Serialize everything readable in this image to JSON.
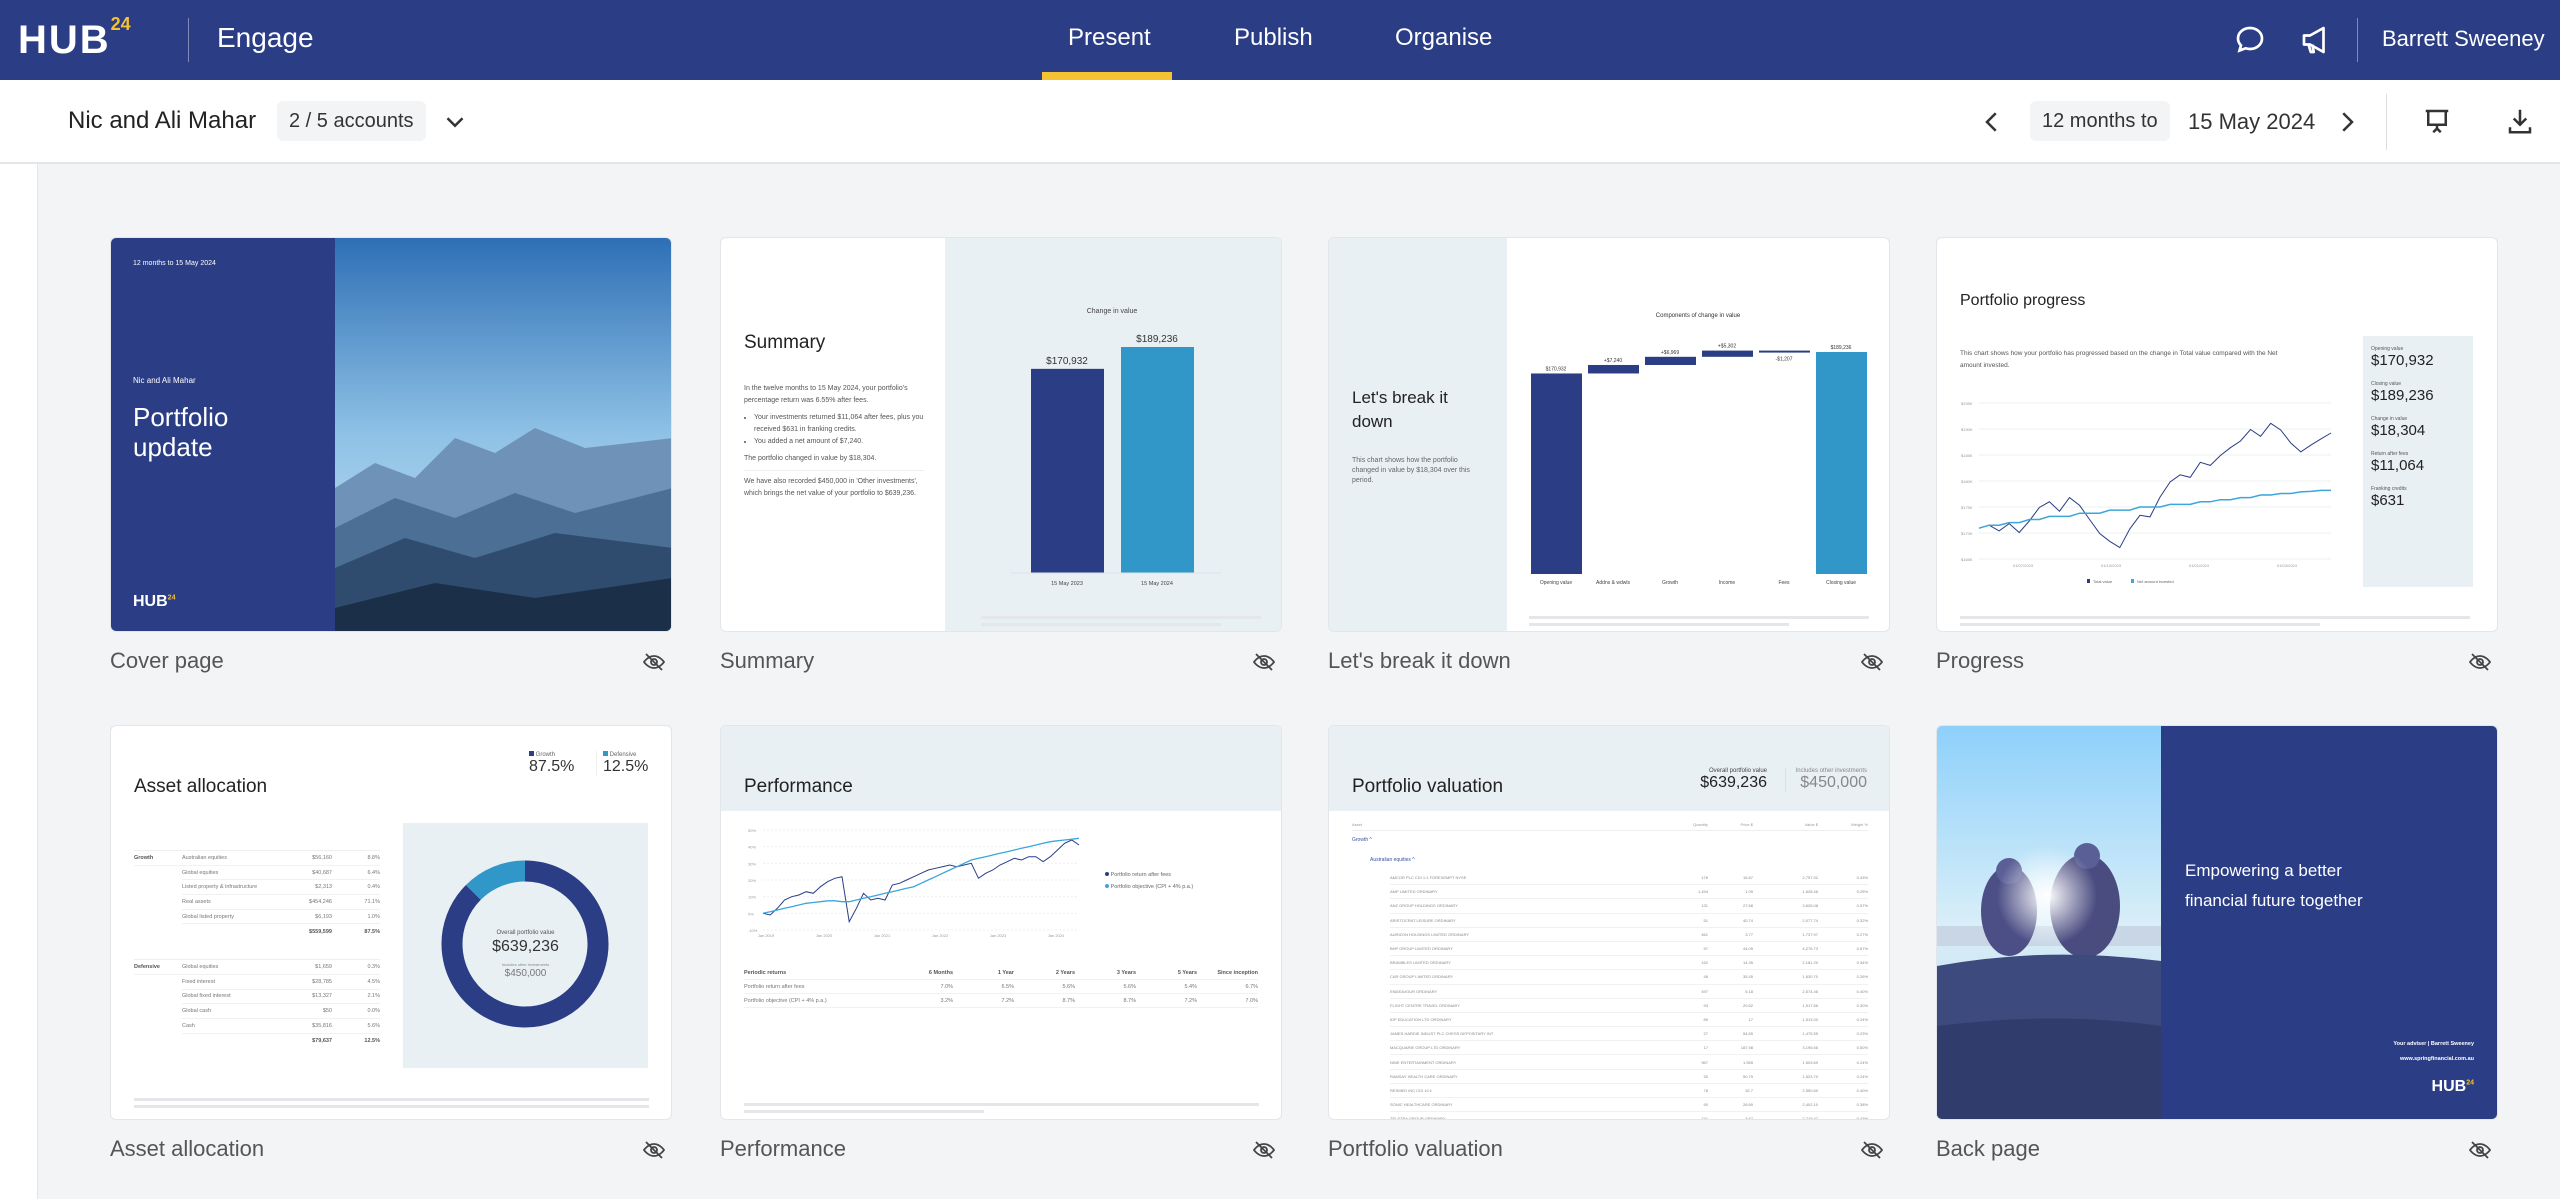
{
  "header": {
    "logo": "HUB",
    "logo_sup": "24",
    "app_name": "Engage",
    "nav": [
      {
        "label": "Present",
        "active": true
      },
      {
        "label": "Publish"
      },
      {
        "label": "Organise"
      }
    ],
    "user": "Barrett Sweeney",
    "icons": [
      "chat-icon",
      "megaphone-icon"
    ]
  },
  "subheader": {
    "client": "Nic and Ali Mahar",
    "accounts": "2 / 5 accounts",
    "period": "12 months to",
    "date": "15 May 2024"
  },
  "colors": {
    "navy": "#2a3d85",
    "accent": "#f5c231",
    "light_blue": "#3196c8",
    "pale": "#e8f0f4"
  },
  "cards": [
    {
      "label": "Cover page"
    },
    {
      "label": "Summary"
    },
    {
      "label": "Let's break it down"
    },
    {
      "label": "Progress"
    },
    {
      "label": "Asset allocation"
    },
    {
      "label": "Performance"
    },
    {
      "label": "Portfolio valuation"
    },
    {
      "label": "Back page"
    }
  ],
  "cover": {
    "period": "12 months to 15 May 2024",
    "client": "Nic and Ali Mahar",
    "title1": "Portfolio",
    "title2": "update",
    "logo": "HUB24"
  },
  "summary": {
    "title": "Summary",
    "p1": "In the twelve months to 15 May 2024, your portfolio's percentage return was 6.55% after fees.",
    "b1": "Your investments returned $11,064 after fees, plus you received $631 in franking credits.",
    "b2": "You added a net amount of $7,240.",
    "p2": "The portfolio changed in value by $18,304.",
    "p3": "We have also recorded $450,000 in 'Other investments', which brings the net value of your portfolio to $639,236."
  },
  "breakdown": {
    "title": "Let's break it down",
    "desc": "This chart shows how the portfolio changed in value by $18,304 over this period."
  },
  "progress": {
    "title": "Portfolio progress",
    "desc": "This chart shows how your portfolio has progressed based on the change in Total value compared with the Net amount invested.",
    "stats": [
      {
        "label": "Opening value",
        "value": "$170,932"
      },
      {
        "label": "Closing value",
        "value": "$189,236"
      },
      {
        "label": "Change in value",
        "value": "$18,304"
      },
      {
        "label": "Return after fees",
        "value": "$11,064"
      },
      {
        "label": "Franking credits",
        "value": "$631"
      }
    ]
  },
  "allocation": {
    "title": "Asset allocation",
    "legend": [
      {
        "label": "Growth",
        "value": "87.5%"
      },
      {
        "label": "Defensive",
        "value": "12.5%"
      }
    ],
    "groups": [
      {
        "name": "Growth",
        "rows": [
          [
            "Australian equities",
            "$56,160",
            "8.8%"
          ],
          [
            "Global equities",
            "$40,687",
            "6.4%"
          ],
          [
            "Listed property & infrastructure",
            "$2,313",
            "0.4%"
          ],
          [
            "Real assets",
            "$454,246",
            "71.1%"
          ],
          [
            "Global listed property",
            "$6,193",
            "1.0%"
          ]
        ],
        "total": [
          "$559,599",
          "87.5%"
        ]
      },
      {
        "name": "Defensive",
        "rows": [
          [
            "Global equities",
            "$1,659",
            "0.3%"
          ],
          [
            "Fixed interest",
            "$28,785",
            "4.5%"
          ],
          [
            "Global fixed interest",
            "$13,327",
            "2.1%"
          ],
          [
            "Global cash",
            "$50",
            "0.0%"
          ],
          [
            "Cash",
            "$35,816",
            "5.6%"
          ]
        ],
        "total": [
          "$79,637",
          "12.5%"
        ]
      }
    ],
    "donut_label": "Overall portfolio value",
    "donut_value": "$639,236",
    "other_label": "Includes other investments",
    "other_value": "$450,000"
  },
  "performance": {
    "title": "Performance",
    "legend": [
      "Portfolio return after fees",
      "Portfolio objective (CPI + 4% p.a.)"
    ],
    "columns": [
      "Periodic returns",
      "6 Months",
      "1 Year",
      "2 Years",
      "3 Years",
      "5 Years",
      "Since inception"
    ],
    "rows": [
      [
        "Portfolio return after fees",
        "7.0%",
        "6.5%",
        "5.6%",
        "5.6%",
        "5.4%",
        "6.7%"
      ],
      [
        "Portfolio objective (CPI + 4% p.a.)",
        "3.2%",
        "7.2%",
        "8.7%",
        "8.7%",
        "7.2%",
        "7.0%"
      ]
    ]
  },
  "valuation": {
    "title": "Portfolio valuation",
    "overall_label": "Overall portfolio value",
    "overall_value": "$639,236",
    "other_label": "Includes other investments",
    "other_value": "$450,000",
    "columns": [
      "Asset",
      "Quantity",
      "Price $",
      "Value $",
      "Weight %"
    ],
    "group": "Growth",
    "subgroup": "Australian equities",
    "rows": [
      [
        "AMCOR PLC CDI 1:1 FOREXEMPT NYSE",
        "176",
        "15.67",
        "2,757.92",
        "0.43%"
      ],
      [
        "AMP LIMITED ORDINARY",
        "1,494",
        "1.09",
        "1,628.46",
        "0.25%"
      ],
      [
        "ANZ GROUP HOLDINGS ORDINARY",
        "131",
        "27.68",
        "3,626.08",
        "0.57%"
      ],
      [
        "ARISTOCRAT LEISURE ORDINARY",
        "51",
        "40.74",
        "2,077.74",
        "0.32%"
      ],
      [
        "AURIZON HOLDINGS LIMITED ORDINARY",
        "461",
        "3.77",
        "1,737.97",
        "0.27%"
      ],
      [
        "BHP GROUP LIMITED ORDINARY",
        "97",
        "44.09",
        "4,276.73",
        "0.67%"
      ],
      [
        "BRAMBLES LIMITED ORDINARY",
        "152",
        "14.35",
        "2,181.20",
        "0.34%"
      ],
      [
        "CAR GROUP LIMITED ORDINARY",
        "46",
        "35.45",
        "1,630.70",
        "0.26%"
      ],
      [
        "ENDEAVOUR ORDINARY",
        "497",
        "5.18",
        "2,574.46",
        "0.40%"
      ],
      [
        "FLIGHT CENTRE TRAVEL ORDINARY",
        "93",
        "20.62",
        "1,917.66",
        "0.30%"
      ],
      [
        "IDP EDUCATION LTD ORDINARY",
        "89",
        "17",
        "1,513.00",
        "0.24%"
      ],
      [
        "JAMES HARDIE INDUST PLC CHESS DEPOSITARY INT",
        "27",
        "54.65",
        "1,475.55",
        "0.23%"
      ],
      [
        "MACQUARIE GROUP LTD ORDINARY",
        "17",
        "187.98",
        "3,195.66",
        "0.50%"
      ],
      [
        "NINE ENTERTAINMENT ORDINARY",
        "967",
        "1.555",
        "1,503.69",
        "0.24%"
      ],
      [
        "RAMSAY HEALTH CARE ORDINARY",
        "30",
        "50.79",
        "1,523.70",
        "0.24%"
      ],
      [
        "RESMED INC CDI 10:1",
        "78",
        "32.7",
        "2,550.60",
        "0.40%"
      ],
      [
        "SONIC HEALTHCARE ORDINARY",
        "90",
        "26.69",
        "2,402.10",
        "0.38%"
      ],
      [
        "TELSTRA GROUP ORDINARY",
        "741",
        "3.67",
        "2,719.47",
        "0.43%"
      ]
    ]
  },
  "back": {
    "line1": "Empowering a better",
    "line2": "financial future together",
    "adviser": "Your adviser | Barrett Sweeney",
    "url": "www.springfinancial.com.au",
    "logo": "HUB24"
  },
  "chart_data": [
    {
      "type": "bar",
      "title": "Change in value",
      "categories": [
        "15 May 2023",
        "15 May 2024"
      ],
      "values": [
        170932,
        189236
      ],
      "labels": [
        "$170,932",
        "$189,236"
      ]
    },
    {
      "type": "bar",
      "title": "Components of change in value",
      "categories": [
        "Opening value",
        "Addns & wdwls",
        "Growth",
        "Income",
        "Fees",
        "Closing value"
      ],
      "values": [
        170932,
        7240,
        6969,
        5302,
        -1207,
        189236
      ],
      "labels": [
        "$170,932",
        "+$7,240",
        "+$6,969",
        "+$5,302",
        "-$1,207",
        "$189,236"
      ]
    },
    {
      "type": "line",
      "title": "Portfolio progress",
      "yticks": [
        "$195K",
        "$190K",
        "$185K",
        "$180K",
        "$175K",
        "$170K",
        "$165K"
      ],
      "ylim": [
        165000,
        195000
      ],
      "xticks": [
        "01/07/2023",
        "01/10/2023",
        "01/01/2024",
        "01/04/2024"
      ],
      "series": [
        {
          "name": "Total value",
          "values": [
            170932,
            171500,
            170400,
            171800,
            170100,
            172300,
            174900,
            176000,
            174200,
            176800,
            175300,
            172600,
            169900,
            168400,
            167200,
            170800,
            173400,
            173100,
            176900,
            179800,
            181200,
            180700,
            183600,
            183000,
            184900,
            186400,
            187700,
            189900,
            188600,
            191100,
            189800,
            187300,
            185600,
            186900,
            188100,
            189236
          ]
        },
        {
          "name": "Net amount invested",
          "values": [
            170932,
            171500,
            171500,
            172000,
            172000,
            172600,
            172600,
            173200,
            173200,
            173200,
            173800,
            173800,
            173800,
            174400,
            174400,
            174400,
            175000,
            175000,
            175000,
            175500,
            175500,
            175500,
            176000,
            176000,
            176400,
            176400,
            176800,
            176800,
            177300,
            177300,
            177600,
            177600,
            177900,
            178000,
            178200,
            178200
          ]
        }
      ]
    },
    {
      "type": "line",
      "title": "Performance",
      "yticks": [
        "50%",
        "40%",
        "30%",
        "20%",
        "10%",
        "0%",
        "-10%"
      ],
      "ylim": [
        -10,
        50
      ],
      "xticks": [
        "Jan 2019",
        "Jan 2020",
        "Jan 2021",
        "Jan 2022",
        "Jan 2023",
        "Jan 2024"
      ],
      "series": [
        {
          "name": "Portfolio return after fees",
          "values": [
            0,
            -1,
            3,
            8,
            10,
            11,
            13,
            12,
            16,
            19,
            21,
            22,
            -5,
            3,
            12,
            8,
            9,
            8,
            17,
            18,
            20,
            22,
            24,
            26,
            27,
            28,
            29,
            28,
            29,
            30,
            21,
            24,
            26,
            29,
            31,
            33,
            32,
            34,
            34,
            31,
            34,
            38,
            42,
            44,
            41
          ]
        },
        {
          "name": "Portfolio objective (CPI + 4% p.a.)",
          "values": [
            0,
            1,
            2,
            3,
            4,
            5,
            6,
            6.5,
            7,
            7.5,
            7.5,
            7,
            7,
            8,
            9,
            10,
            11,
            12,
            13,
            14,
            15,
            16,
            18,
            20,
            22,
            24,
            26,
            28,
            30,
            32,
            33,
            34,
            35,
            36,
            37,
            38,
            39,
            40,
            41,
            42,
            43,
            43.5,
            44,
            44.5,
            45
          ]
        }
      ]
    },
    {
      "type": "pie",
      "title": "Asset allocation",
      "categories": [
        "Growth",
        "Defensive"
      ],
      "values": [
        87.5,
        12.5
      ]
    }
  ]
}
